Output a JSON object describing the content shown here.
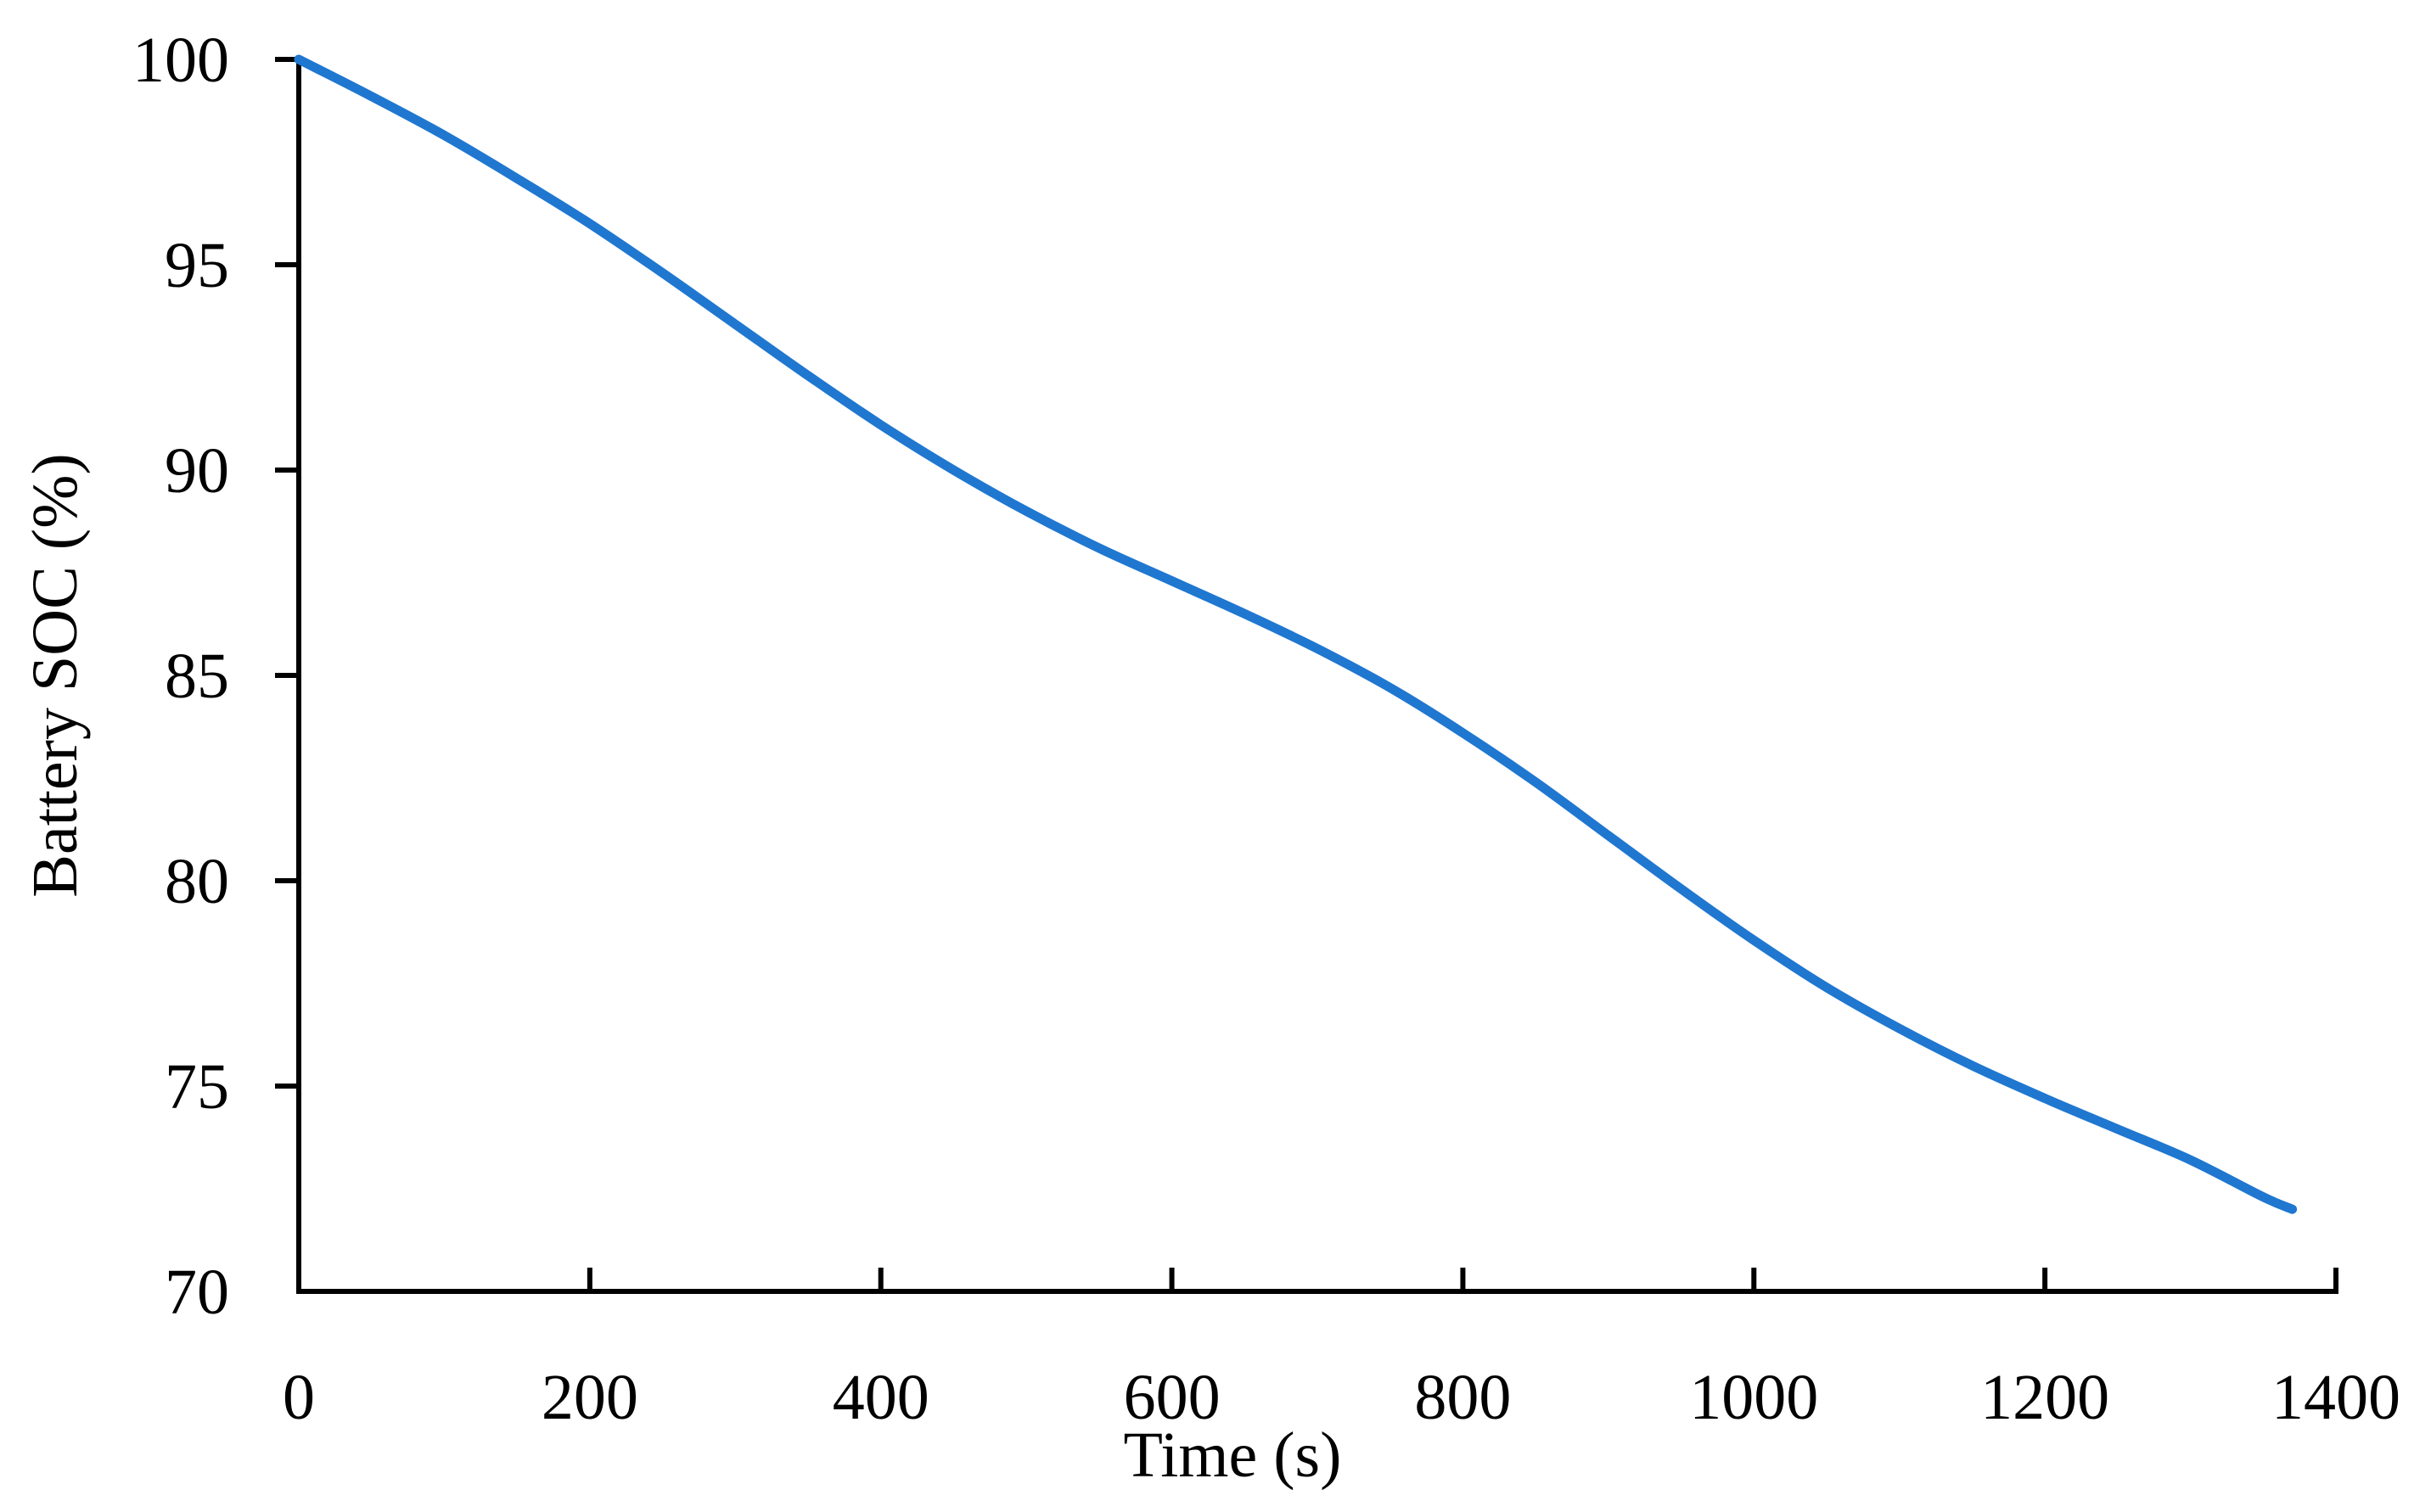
{
  "chart_data": {
    "type": "line",
    "xlabel": "Time (s)",
    "ylabel": "Battery SOC (%)",
    "xlim": [
      0,
      1400
    ],
    "ylim": [
      70,
      100
    ],
    "xticks": [
      0,
      200,
      400,
      600,
      800,
      1000,
      1200,
      1400
    ],
    "yticks": [
      70,
      75,
      80,
      85,
      90,
      95,
      100
    ],
    "grid": false,
    "series": [
      {
        "color": "#1f77d0",
        "x": [
          0,
          50,
          100,
          150,
          200,
          250,
          300,
          350,
          400,
          450,
          500,
          550,
          600,
          650,
          700,
          750,
          800,
          850,
          900,
          950,
          1000,
          1050,
          1100,
          1150,
          1200,
          1250,
          1300,
          1350,
          1370
        ],
        "y": [
          100,
          99.1,
          98.15,
          97.1,
          96.0,
          94.8,
          93.55,
          92.3,
          91.1,
          90.0,
          89.0,
          88.1,
          87.3,
          86.5,
          85.65,
          84.7,
          83.6,
          82.4,
          81.1,
          79.8,
          78.55,
          77.4,
          76.4,
          75.5,
          74.7,
          73.95,
          73.2,
          72.3,
          72.0
        ]
      }
    ]
  }
}
